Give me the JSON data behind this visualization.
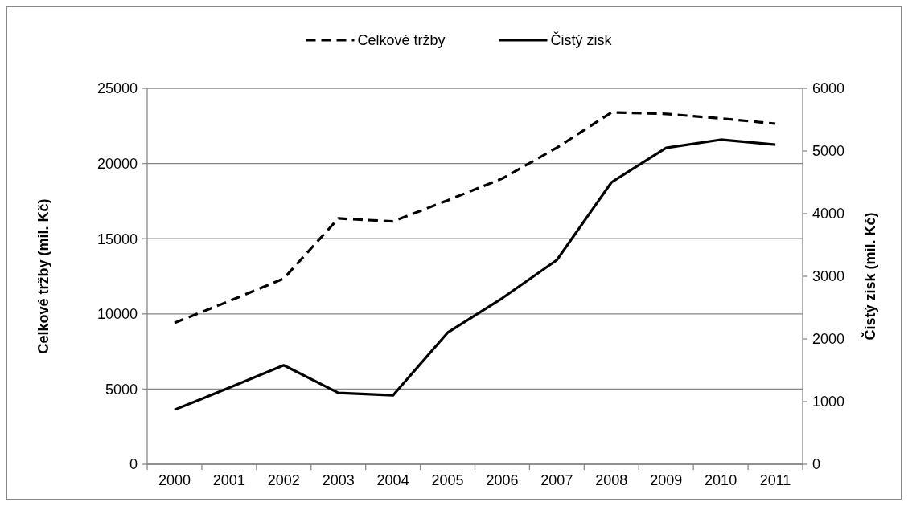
{
  "chart_data": {
    "type": "line",
    "xlabel": null,
    "ylabel": "Celkové tržby (mil. Kč)",
    "y2label": "Čistý zisk (mil. Kč)",
    "categories": [
      "2000",
      "2001",
      "2002",
      "2003",
      "2004",
      "2005",
      "2006",
      "2007",
      "2008",
      "2009",
      "2010",
      "2011"
    ],
    "series": [
      {
        "name": "Celkové tržby",
        "color": "#000000",
        "line_style": "dashed",
        "values": [
          9400,
          10850,
          12350,
          16350,
          16150,
          17550,
          19000,
          21050,
          23400,
          23300,
          23000,
          22650
        ]
      },
      {
        "name": "Čistý zisk",
        "color": "#000000",
        "line_style": "solid",
        "axis": "y2",
        "values": [
          870,
          1220,
          1580,
          1140,
          1100,
          2100,
          2650,
          3260,
          4500,
          5050,
          5180,
          5100
        ]
      }
    ],
    "ylim": [
      0,
      25000
    ],
    "yticks": [
      0,
      5000,
      10000,
      15000,
      20000,
      25000
    ],
    "y2lim": [
      0,
      6000
    ],
    "y2ticks": [
      0,
      1000,
      2000,
      3000,
      4000,
      5000,
      6000
    ],
    "grid": "y",
    "legend": "top",
    "marker": "none"
  }
}
